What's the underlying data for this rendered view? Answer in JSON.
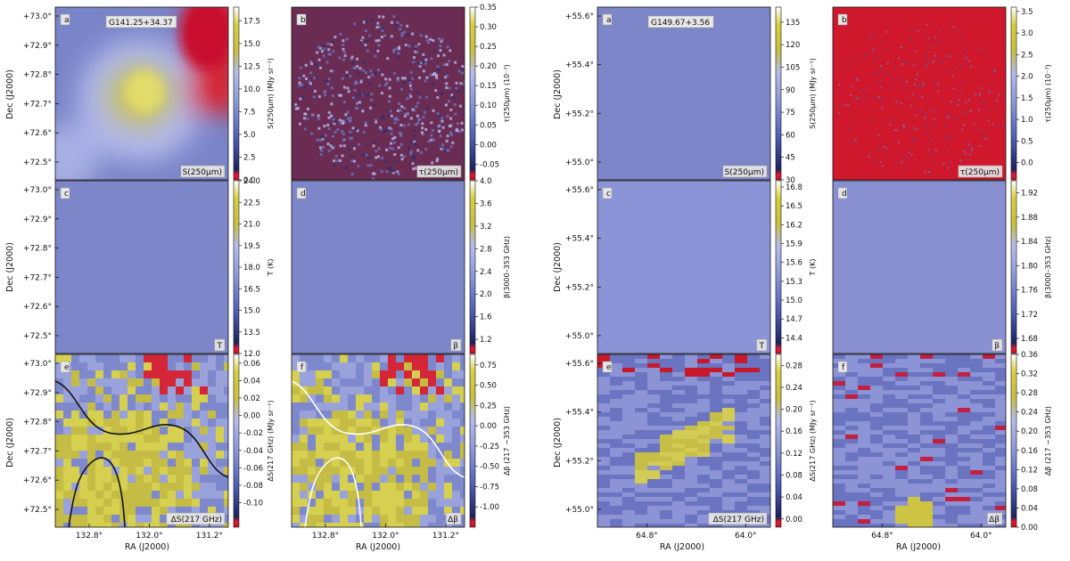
{
  "figure": {
    "ra_axis_label": "RA (J2000)",
    "dec_axis_label": "Dec (J2000)"
  },
  "colormap": {
    "stops": [
      "#c8102e",
      "#e31a2c",
      "#1c2260",
      "#5060b8",
      "#8c98d8",
      "#b4bcec",
      "#c8c040",
      "#d8d040",
      "#ffffff"
    ]
  },
  "chart_data": [
    {
      "type": "heatmap",
      "panel": "a",
      "field": "G141.25+34.37",
      "map_label": "S(250μm)",
      "colorbar_label": "S(250μm) (MJy sr⁻¹)",
      "colorbar_ticks": [
        "17.5",
        "15.0",
        "12.5",
        "10.0",
        "7.5",
        "5.0",
        "2.5",
        "0.0"
      ],
      "colorbar_range": [
        0.0,
        19.0
      ],
      "y_ticks": [
        "+73.0°",
        "+72.9°",
        "+72.8°",
        "+72.7°",
        "+72.6°",
        "+72.5°"
      ],
      "x_ticks": []
    },
    {
      "type": "heatmap",
      "panel": "b",
      "field": "G141.25+34.37",
      "map_label": "τ(250μm)",
      "colorbar_label": "τ(250μm) (10⁻³)",
      "colorbar_ticks": [
        "0.35",
        "0.30",
        "0.25",
        "0.20",
        "0.15",
        "0.10",
        "0.05",
        "0.00",
        "-0.05"
      ],
      "colorbar_range": [
        -0.09,
        0.35
      ],
      "y_ticks": [],
      "x_ticks": []
    },
    {
      "type": "heatmap",
      "panel": "c",
      "field": "G141.25+34.37",
      "map_label": "T",
      "colorbar_label": "T (K)",
      "colorbar_ticks": [
        "24.0",
        "22.5",
        "21.0",
        "19.5",
        "18.0",
        "16.5",
        "15.0",
        "13.5",
        "12.0"
      ],
      "colorbar_range": [
        12.0,
        24.0
      ],
      "y_ticks": [
        "+73.0°",
        "+72.9°",
        "+72.8°",
        "+72.7°",
        "+72.6°",
        "+72.5°"
      ],
      "x_ticks": []
    },
    {
      "type": "heatmap",
      "panel": "d",
      "field": "G141.25+34.37",
      "map_label": "β",
      "colorbar_label": "β(3000–353 GHz)",
      "colorbar_ticks": [
        "4.0",
        "3.6",
        "3.2",
        "2.8",
        "2.4",
        "2.0",
        "1.6",
        "1.2"
      ],
      "colorbar_range": [
        0.95,
        4.0
      ],
      "y_ticks": [],
      "x_ticks": []
    },
    {
      "type": "heatmap",
      "panel": "e",
      "field": "G141.25+34.37",
      "map_label": "ΔS(217 GHz)",
      "colorbar_label": "ΔS(217 GHz) (MJy sr⁻¹)",
      "colorbar_ticks": [
        "0.06",
        "0.04",
        "0.02",
        "0.00",
        "-0.02",
        "-0.04",
        "-0.06",
        "-0.08",
        "-0.10"
      ],
      "colorbar_range": [
        -0.128,
        0.07
      ],
      "y_ticks": [
        "+73.0°",
        "+72.9°",
        "+72.8°",
        "+72.7°",
        "+72.6°",
        "+72.5°"
      ],
      "x_ticks": [
        "132.8°",
        "132.0°",
        "131.2°"
      ],
      "x_tick_values": [
        132.8,
        132.0,
        131.2
      ]
    },
    {
      "type": "heatmap",
      "panel": "f",
      "field": "G141.25+34.37",
      "map_label": "Δβ",
      "colorbar_label": "Δβ (217 −353 GHz)",
      "colorbar_ticks": [
        "0.75",
        "0.50",
        "0.25",
        "0.00",
        "-0.25",
        "-0.50",
        "-0.75",
        "-1.00"
      ],
      "colorbar_range": [
        -1.25,
        0.88
      ],
      "y_ticks": [],
      "x_ticks": [
        "132.8°",
        "132.0°",
        "131.2°"
      ],
      "x_tick_values": [
        132.8,
        132.0,
        131.2
      ]
    },
    {
      "type": "heatmap",
      "panel": "a",
      "field": "G149.67+3.56",
      "map_label": "S(250μm)",
      "colorbar_label": "S(250μm) (MJy sr⁻¹)",
      "colorbar_ticks": [
        "135",
        "120",
        "105",
        "90",
        "75",
        "60",
        "45",
        "30"
      ],
      "colorbar_range": [
        30,
        145
      ],
      "y_ticks": [
        "+55.6°",
        "+55.4°",
        "+55.2°",
        "+55.0°"
      ],
      "x_ticks": []
    },
    {
      "type": "heatmap",
      "panel": "b",
      "field": "G149.67+3.56",
      "map_label": "τ(250μm)",
      "colorbar_label": "τ(250μm) (10⁻³)",
      "colorbar_ticks": [
        "3.5",
        "3.0",
        "2.5",
        "2.0",
        "1.5",
        "1.0",
        "0.5",
        "0.0"
      ],
      "colorbar_range": [
        -0.4,
        3.6
      ],
      "y_ticks": [],
      "x_ticks": []
    },
    {
      "type": "heatmap",
      "panel": "c",
      "field": "G149.67+3.56",
      "map_label": "T",
      "colorbar_label": "T (K)",
      "colorbar_ticks": [
        "16.8",
        "16.5",
        "16.2",
        "15.9",
        "15.6",
        "15.3",
        "15.0",
        "14.7",
        "14.4"
      ],
      "colorbar_range": [
        14.15,
        16.9
      ],
      "y_ticks": [
        "+55.6°",
        "+55.4°",
        "+55.2°",
        "+55.0°"
      ],
      "x_ticks": []
    },
    {
      "type": "heatmap",
      "panel": "d",
      "field": "G149.67+3.56",
      "map_label": "β",
      "colorbar_label": "β(3000–353 GHz)",
      "colorbar_ticks": [
        "1.92",
        "1.88",
        "1.84",
        "1.80",
        "1.76",
        "1.72",
        "1.68"
      ],
      "colorbar_range": [
        1.655,
        1.94
      ],
      "y_ticks": [],
      "x_ticks": []
    },
    {
      "type": "heatmap",
      "panel": "e",
      "field": "G149.67+3.56",
      "map_label": "ΔS(217 GHz)",
      "colorbar_label": "ΔS(217 GHz) (MJy sr⁻¹)",
      "colorbar_ticks": [
        "0.28",
        "0.24",
        "0.20",
        "0.16",
        "0.12",
        "0.08",
        "0.04",
        "0.00"
      ],
      "colorbar_range": [
        -0.015,
        0.3
      ],
      "y_ticks": [
        "+55.6°",
        "+55.4°",
        "+55.2°",
        "+55.0°"
      ],
      "x_ticks": [
        "64.8°",
        "64.0°"
      ],
      "x_tick_values": [
        64.8,
        64.0
      ]
    },
    {
      "type": "heatmap",
      "panel": "f",
      "field": "G149.67+3.56",
      "map_label": "Δβ",
      "colorbar_label": "Δβ (217 −353 GHz)",
      "colorbar_ticks": [
        "0.36",
        "0.32",
        "0.28",
        "0.24",
        "0.20",
        "0.16",
        "0.12",
        "0.08",
        "0.04",
        "0.00"
      ],
      "colorbar_range": [
        0.0,
        0.36
      ],
      "y_ticks": [],
      "x_ticks": [
        "64.8°",
        "64.0°"
      ],
      "x_tick_values": [
        64.8,
        64.0
      ]
    }
  ]
}
